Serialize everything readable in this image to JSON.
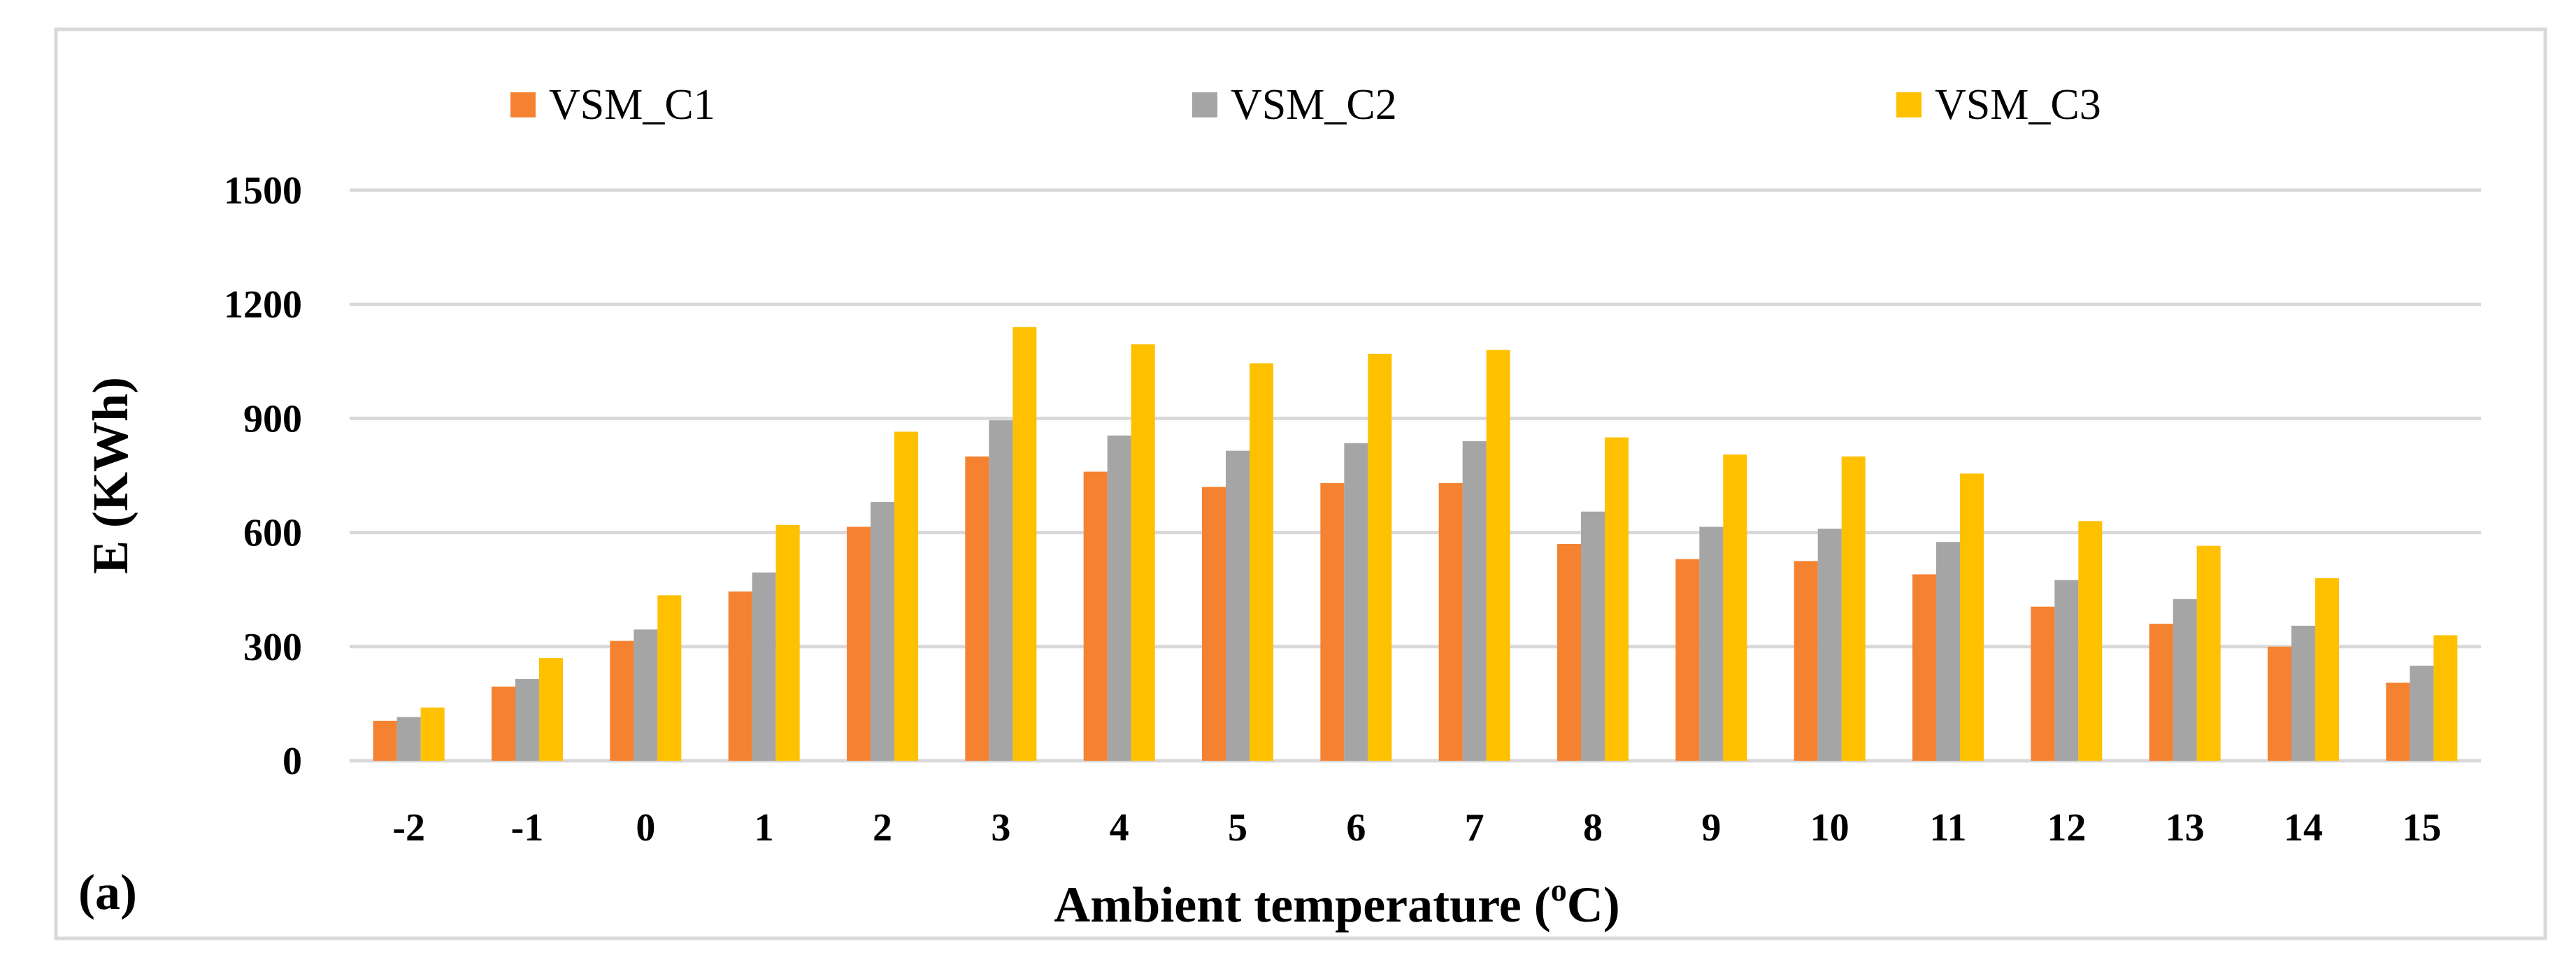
{
  "chart_data": {
    "type": "bar",
    "panel_label": "(a)",
    "xlabel": "Ambient temperature (",
    "xlabel_sup": "o",
    "xlabel_end": "C)",
    "ylabel": "E (KWh)",
    "ylim": [
      0,
      1500
    ],
    "yticks": [
      0,
      300,
      600,
      900,
      1200,
      1500
    ],
    "grid": true,
    "legend_position": "top",
    "categories": [
      "-2",
      "-1",
      "0",
      "1",
      "2",
      "3",
      "4",
      "5",
      "6",
      "7",
      "8",
      "9",
      "10",
      "11",
      "12",
      "13",
      "14",
      "15"
    ],
    "series": [
      {
        "name": "VSM_C1",
        "color": "#f58230",
        "values": [
          105,
          195,
          315,
          445,
          615,
          800,
          760,
          720,
          730,
          730,
          570,
          530,
          525,
          490,
          405,
          360,
          300,
          205
        ]
      },
      {
        "name": "VSM_C2",
        "color": "#a5a5a5",
        "values": [
          115,
          215,
          345,
          495,
          680,
          895,
          855,
          815,
          835,
          840,
          655,
          615,
          610,
          575,
          475,
          425,
          355,
          250
        ]
      },
      {
        "name": "VSM_C3",
        "color": "#ffc000",
        "values": [
          140,
          270,
          435,
          620,
          865,
          1140,
          1095,
          1045,
          1070,
          1080,
          850,
          805,
          800,
          755,
          630,
          565,
          480,
          330
        ]
      }
    ]
  }
}
